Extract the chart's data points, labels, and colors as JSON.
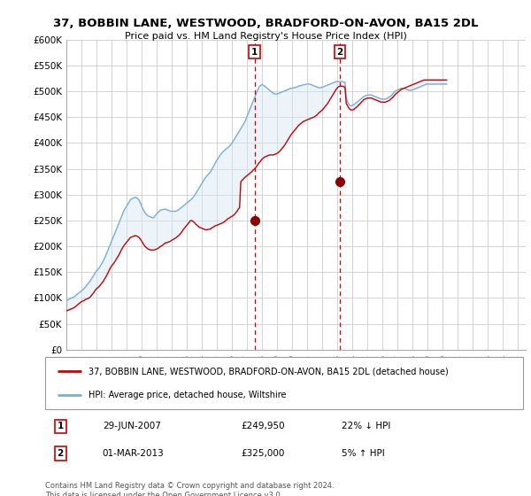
{
  "title": "37, BOBBIN LANE, WESTWOOD, BRADFORD-ON-AVON, BA15 2DL",
  "subtitle": "Price paid vs. HM Land Registry's House Price Index (HPI)",
  "ylim": [
    0,
    600000
  ],
  "yticks": [
    0,
    50000,
    100000,
    150000,
    200000,
    250000,
    300000,
    350000,
    400000,
    450000,
    500000,
    550000,
    600000
  ],
  "ytick_labels": [
    "£0",
    "£50K",
    "£100K",
    "£150K",
    "£200K",
    "£250K",
    "£300K",
    "£350K",
    "£400K",
    "£450K",
    "£500K",
    "£550K",
    "£600K"
  ],
  "xlim_start": 1995.0,
  "xlim_end": 2025.5,
  "purchase1_x": 2007.49,
  "purchase1_y": 249950,
  "purchase1_label": "1",
  "purchase1_date": "29-JUN-2007",
  "purchase1_price": "£249,950",
  "purchase1_hpi": "22% ↓ HPI",
  "purchase2_x": 2013.17,
  "purchase2_y": 325000,
  "purchase2_label": "2",
  "purchase2_date": "01-MAR-2013",
  "purchase2_price": "£325,000",
  "purchase2_hpi": "5% ↑ HPI",
  "red_line_color": "#cc0000",
  "blue_line_color": "#7aaed6",
  "shade_color": "#d6e8f5",
  "dot_color": "#8b0000",
  "marker_box_color": "#cc0000",
  "legend_line1": "37, BOBBIN LANE, WESTWOOD, BRADFORD-ON-AVON, BA15 2DL (detached house)",
  "legend_line2": "HPI: Average price, detached house, Wiltshire",
  "footnote": "Contains HM Land Registry data © Crown copyright and database right 2024.\nThis data is licensed under the Open Government Licence v3.0.",
  "hpi_values_monthly": [
    95000,
    96000,
    97500,
    99000,
    100000,
    101000,
    102000,
    104000,
    106000,
    108000,
    110000,
    112000,
    114000,
    116000,
    118000,
    121000,
    124000,
    127000,
    130000,
    133000,
    137000,
    141000,
    145000,
    149000,
    152000,
    155000,
    158000,
    162000,
    166000,
    170000,
    175000,
    180000,
    186000,
    192000,
    198000,
    204000,
    210000,
    216000,
    222000,
    228000,
    234000,
    240000,
    246000,
    252000,
    258000,
    264000,
    270000,
    274000,
    278000,
    282000,
    286000,
    290000,
    292000,
    293000,
    294000,
    295000,
    294000,
    292000,
    289000,
    284000,
    278000,
    272000,
    268000,
    264000,
    261000,
    259000,
    258000,
    257000,
    256000,
    255000,
    257000,
    260000,
    263000,
    266000,
    268000,
    270000,
    271000,
    271000,
    272000,
    272000,
    271000,
    270000,
    269000,
    268000,
    268000,
    268000,
    268000,
    268000,
    269000,
    270000,
    272000,
    274000,
    276000,
    278000,
    280000,
    282000,
    284000,
    286000,
    288000,
    290000,
    292000,
    295000,
    298000,
    302000,
    306000,
    310000,
    314000,
    318000,
    322000,
    326000,
    330000,
    334000,
    337000,
    339000,
    342000,
    345000,
    349000,
    354000,
    358000,
    363000,
    367000,
    371000,
    375000,
    378000,
    381000,
    384000,
    386000,
    388000,
    390000,
    392000,
    394000,
    397000,
    400000,
    404000,
    408000,
    412000,
    416000,
    420000,
    424000,
    428000,
    432000,
    436000,
    440000,
    446000,
    452000,
    458000,
    464000,
    470000,
    476000,
    482000,
    488000,
    494000,
    500000,
    506000,
    510000,
    512000,
    513000,
    512000,
    510000,
    508000,
    506000,
    504000,
    502000,
    500000,
    498000,
    496000,
    495000,
    495000,
    495000,
    496000,
    497000,
    498000,
    499000,
    500000,
    501000,
    502000,
    503000,
    504000,
    505000,
    506000,
    506000,
    507000,
    507000,
    508000,
    509000,
    510000,
    511000,
    511000,
    512000,
    513000,
    513000,
    514000,
    514000,
    514000,
    514000,
    513000,
    512000,
    511000,
    510000,
    509000,
    508000,
    507000,
    507000,
    507000,
    508000,
    509000,
    510000,
    511000,
    512000,
    513000,
    514000,
    515000,
    516000,
    517000,
    518000,
    519000,
    519000,
    519000,
    519000,
    519000,
    519000,
    518000,
    518000,
    487000,
    480000,
    475000,
    473000,
    472000,
    473000,
    474000,
    476000,
    478000,
    480000,
    482000,
    484000,
    486000,
    488000,
    490000,
    491000,
    492000,
    493000,
    493000,
    493000,
    493000,
    492000,
    491000,
    490000,
    489000,
    488000,
    487000,
    486000,
    485000,
    485000,
    485000,
    485000,
    486000,
    487000,
    489000,
    490000,
    492000,
    495000,
    498000,
    500000,
    502000,
    503000,
    504000,
    505000,
    506000,
    506000,
    506000,
    505000,
    504000,
    503000,
    502000,
    502000,
    502000,
    503000,
    504000,
    505000,
    506000,
    507000,
    508000,
    509000,
    510000,
    511000,
    512000,
    513000,
    514000,
    514000,
    514000,
    514000,
    514000,
    514000,
    514000,
    514000,
    514000,
    514000,
    514000,
    514000,
    514000,
    514000,
    514000,
    514000,
    514000
  ],
  "red_values_monthly": [
    75000,
    76000,
    77000,
    78000,
    79000,
    80000,
    81000,
    83000,
    85000,
    87000,
    89000,
    91000,
    93000,
    94000,
    95000,
    97000,
    98000,
    99000,
    100000,
    102000,
    105000,
    108000,
    111000,
    115000,
    118000,
    120000,
    122000,
    125000,
    128000,
    131000,
    135000,
    139000,
    143000,
    148000,
    153000,
    158000,
    162000,
    165000,
    168000,
    172000,
    176000,
    180000,
    184000,
    189000,
    194000,
    198000,
    202000,
    205000,
    208000,
    211000,
    214000,
    217000,
    218000,
    219000,
    220000,
    221000,
    220000,
    219000,
    217000,
    214000,
    210000,
    206000,
    202000,
    199000,
    197000,
    195000,
    194000,
    193000,
    193000,
    193000,
    193000,
    194000,
    195000,
    196000,
    198000,
    200000,
    201000,
    203000,
    205000,
    207000,
    207000,
    208000,
    209000,
    210000,
    212000,
    213000,
    215000,
    216000,
    218000,
    220000,
    222000,
    225000,
    228000,
    232000,
    235000,
    238000,
    241000,
    244000,
    247000,
    250000,
    249950,
    248000,
    246000,
    243000,
    241000,
    239000,
    237000,
    236000,
    235000,
    234000,
    233000,
    232000,
    232000,
    233000,
    233000,
    234000,
    236000,
    237000,
    239000,
    240000,
    241000,
    242000,
    243000,
    244000,
    245000,
    246000,
    248000,
    250000,
    252000,
    254000,
    255000,
    257000,
    258000,
    260000,
    262000,
    265000,
    268000,
    272000,
    275000,
    325000,
    328000,
    330000,
    333000,
    335000,
    337000,
    339000,
    341000,
    343000,
    345000,
    348000,
    350000,
    353000,
    356000,
    360000,
    363000,
    366000,
    369000,
    371000,
    373000,
    374000,
    375000,
    376000,
    377000,
    377000,
    377000,
    377000,
    378000,
    379000,
    380000,
    382000,
    384000,
    387000,
    390000,
    393000,
    396000,
    400000,
    404000,
    408000,
    412000,
    416000,
    419000,
    422000,
    425000,
    428000,
    431000,
    434000,
    436000,
    438000,
    440000,
    442000,
    443000,
    444000,
    445000,
    446000,
    447000,
    448000,
    449000,
    450000,
    451000,
    453000,
    455000,
    458000,
    460000,
    462000,
    464000,
    467000,
    470000,
    473000,
    476000,
    480000,
    484000,
    488000,
    492000,
    496000,
    500000,
    504000,
    507000,
    509000,
    510000,
    510000,
    510000,
    509000,
    508000,
    477000,
    472000,
    468000,
    465000,
    464000,
    464000,
    465000,
    467000,
    469000,
    471000,
    474000,
    476000,
    479000,
    481000,
    484000,
    485000,
    486000,
    487000,
    487000,
    487000,
    487000,
    486000,
    485000,
    484000,
    483000,
    482000,
    481000,
    480000,
    479000,
    479000,
    479000,
    479000,
    480000,
    481000,
    482000,
    484000,
    486000,
    488000,
    491000,
    494000,
    496000,
    498000,
    500000,
    502000,
    504000,
    505000,
    506000,
    507000,
    508000,
    509000,
    510000,
    511000,
    512000,
    513000,
    514000,
    515000,
    516000,
    517000,
    518000,
    519000,
    520000,
    521000,
    522000,
    522000,
    522000,
    522000,
    522000,
    522000,
    522000,
    522000,
    522000,
    522000,
    522000,
    522000,
    522000,
    522000,
    522000,
    522000,
    522000,
    522000,
    522000
  ],
  "background_color": "#ffffff",
  "grid_color": "#cccccc"
}
